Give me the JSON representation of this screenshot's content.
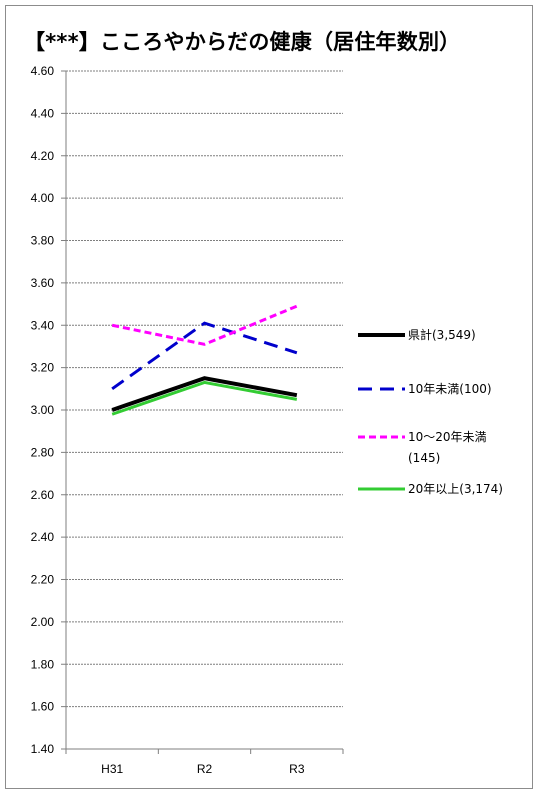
{
  "chart_data": {
    "type": "line",
    "title": "【***】こころやからだの健康（居住年数別）",
    "categories": [
      "H31",
      "R2",
      "R3"
    ],
    "ylim": [
      1.4,
      4.6
    ],
    "ytick_step": 0.2,
    "yticks": [
      "4.60",
      "4.40",
      "4.20",
      "4.00",
      "3.80",
      "3.60",
      "3.40",
      "3.20",
      "3.00",
      "2.80",
      "2.60",
      "2.40",
      "2.20",
      "2.00",
      "1.80",
      "1.60",
      "1.40"
    ],
    "grid": true,
    "legend_position": "right",
    "series": [
      {
        "name": "県計(3,549)",
        "legend_lines": [
          "県計(3,549)"
        ],
        "values": [
          3.0,
          3.15,
          3.07
        ],
        "color": "#000000",
        "style": "solid",
        "width": 4
      },
      {
        "name": "10年未満(100)",
        "legend_lines": [
          "10年未満(100)"
        ],
        "values": [
          3.1,
          3.41,
          3.27
        ],
        "color": "#0000cc",
        "style": "dash",
        "width": 3
      },
      {
        "name": "10～20年未満(145)",
        "legend_lines": [
          "10～20年未満",
          "(145)"
        ],
        "values": [
          3.4,
          3.31,
          3.49
        ],
        "color": "#ff00ff",
        "style": "dash-short",
        "width": 3
      },
      {
        "name": "20年以上(3,174)",
        "legend_lines": [
          "20年以上(3,174)"
        ],
        "values": [
          2.98,
          3.13,
          3.05
        ],
        "color": "#33cc33",
        "style": "solid",
        "width": 3
      }
    ]
  }
}
